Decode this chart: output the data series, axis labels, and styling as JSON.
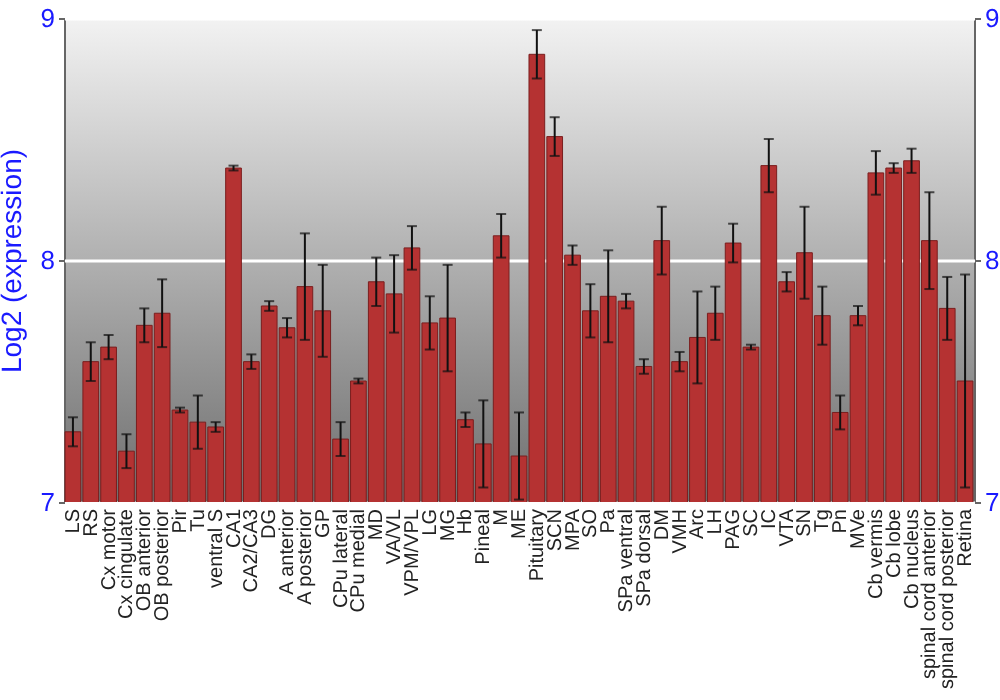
{
  "chart_data": {
    "type": "bar",
    "ylabel": "Log2 (expression)",
    "categories": [
      "LS",
      "RS",
      "Cx motor",
      "Cx cingulate",
      "OB anterior",
      "OB posterior",
      "Pir",
      "Tu",
      "ventral S",
      "CA1",
      "CA2/CA3",
      "DG",
      "A anterior",
      "A posterior",
      "GP",
      "CPu lateral",
      "CPu medial",
      "MD",
      "VA/VL",
      "VPM/VPL",
      "LG",
      "MG",
      "Hb",
      "Pineal",
      "M",
      "ME",
      "Pituitary",
      "SCN",
      "MPA",
      "SO",
      "Pa",
      "SPa ventral",
      "SPa dorsal",
      "DM",
      "VMH",
      "Arc",
      "LH",
      "PAG",
      "SC",
      "IC",
      "VTA",
      "SN",
      "Tg",
      "Pn",
      "MVe",
      "Cb vermis",
      "Cb lobe",
      "Cb nucleus",
      "spinal cord anterior",
      "spinal cord posterior",
      "Retina"
    ],
    "values": [
      7.29,
      7.58,
      7.64,
      7.21,
      7.73,
      7.78,
      7.38,
      7.33,
      7.31,
      8.38,
      7.58,
      7.81,
      7.72,
      7.89,
      7.79,
      7.26,
      7.5,
      7.91,
      7.86,
      8.05,
      7.74,
      7.76,
      7.34,
      7.24,
      8.1,
      7.19,
      8.85,
      8.51,
      8.02,
      7.79,
      7.85,
      7.83,
      7.56,
      8.08,
      7.58,
      7.68,
      7.78,
      8.07,
      7.64,
      8.39,
      7.91,
      8.03,
      7.77,
      7.37,
      7.77,
      8.36,
      8.38,
      8.41,
      8.08,
      7.8,
      7.5
    ],
    "errors": [
      0.06,
      0.08,
      0.05,
      0.07,
      0.07,
      0.14,
      0.01,
      0.11,
      0.02,
      0.01,
      0.03,
      0.02,
      0.04,
      0.22,
      0.19,
      0.07,
      0.01,
      0.1,
      0.16,
      0.09,
      0.11,
      0.22,
      0.03,
      0.18,
      0.09,
      0.18,
      0.1,
      0.08,
      0.04,
      0.11,
      0.19,
      0.03,
      0.03,
      0.14,
      0.04,
      0.19,
      0.11,
      0.08,
      0.01,
      0.11,
      0.04,
      0.19,
      0.12,
      0.07,
      0.04,
      0.09,
      0.02,
      0.05,
      0.2,
      0.13,
      0.44
    ],
    "color": "#b53232",
    "ylim": [
      7,
      9
    ],
    "yticks": [
      7,
      8,
      9
    ],
    "y2lim": [
      7,
      9
    ],
    "y2ticks": [
      7,
      8,
      9
    ],
    "grid": "y"
  }
}
